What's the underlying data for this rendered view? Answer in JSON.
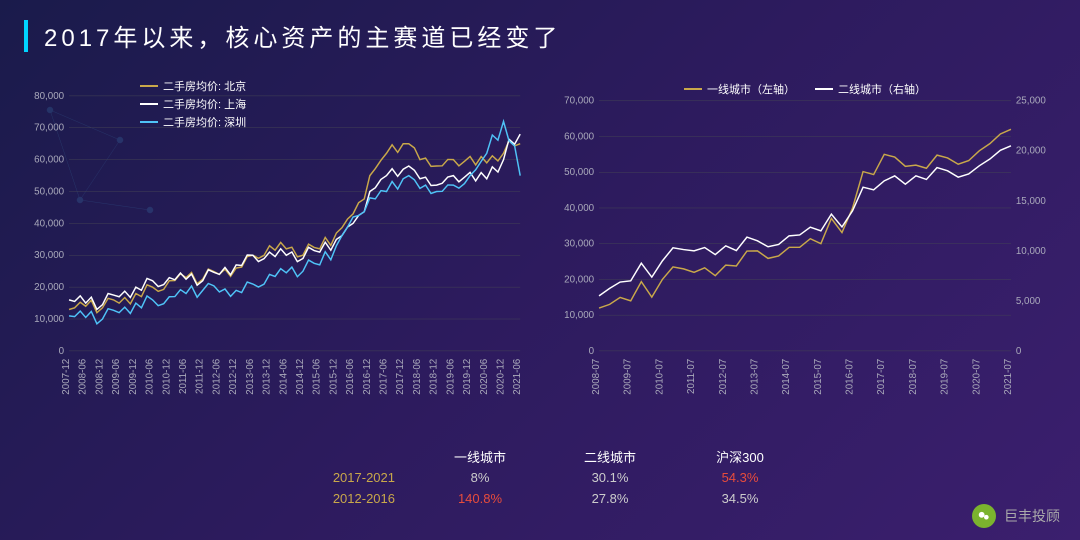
{
  "title": "2017年以来，核心资产的主赛道已经变了",
  "chart_left": {
    "legend": [
      {
        "label": "二手房均价: 北京",
        "color": "#c9a84a"
      },
      {
        "label": "二手房均价: 上海",
        "color": "#ffffff"
      },
      {
        "label": "二手房均价: 深圳",
        "color": "#4fc3f7"
      }
    ],
    "ylim": [
      0,
      80000
    ],
    "ytick_step": 10000,
    "x_labels": [
      "2007-12",
      "2008-06",
      "2008-12",
      "2009-06",
      "2009-12",
      "2010-06",
      "2010-12",
      "2011-06",
      "2011-12",
      "2012-06",
      "2012-12",
      "2013-06",
      "2013-12",
      "2014-06",
      "2014-12",
      "2015-06",
      "2015-12",
      "2016-06",
      "2016-12",
      "2017-06",
      "2017-12",
      "2018-06",
      "2018-12",
      "2019-06",
      "2019-12",
      "2020-06",
      "2020-12",
      "2021-06"
    ],
    "series": [
      {
        "color": "#c9a84a",
        "pts": [
          13000,
          14000,
          13500,
          15000,
          18000,
          20000,
          22000,
          23000,
          22500,
          24000,
          26000,
          30000,
          33000,
          32000,
          30000,
          32000,
          37000,
          43000,
          55000,
          62000,
          65000,
          60000,
          58000,
          60000,
          61000,
          59000,
          62000,
          65000
        ]
      },
      {
        "color": "#ffffff",
        "pts": [
          16000,
          15000,
          14500,
          17000,
          20000,
          22000,
          23000,
          22500,
          22000,
          24000,
          27000,
          30000,
          31000,
          30000,
          29000,
          31000,
          35000,
          40000,
          50000,
          55000,
          57000,
          54000,
          52000,
          55000,
          56000,
          54000,
          60000,
          68000
        ]
      },
      {
        "color": "#4fc3f7",
        "pts": [
          11000,
          10500,
          10000,
          12000,
          15000,
          16000,
          17000,
          18000,
          19000,
          18500,
          19000,
          21000,
          24000,
          24500,
          25000,
          27000,
          33000,
          42000,
          48000,
          50000,
          54000,
          51000,
          50000,
          52000,
          55000,
          62000,
          72000,
          55000
        ]
      }
    ]
  },
  "chart_right": {
    "legend": [
      {
        "label": "一线城市（左轴）",
        "color": "#c9a84a"
      },
      {
        "label": "二线城市（右轴）",
        "color": "#ffffff"
      }
    ],
    "ylim_left": [
      0,
      70000
    ],
    "ytick_left": 10000,
    "ylim_right": [
      0,
      25000
    ],
    "ytick_right": 5000,
    "x_labels": [
      "2008-07",
      "2009-07",
      "2010-07",
      "2011-07",
      "2012-07",
      "2013-07",
      "2014-07",
      "2015-07",
      "2016-07",
      "2017-07",
      "2018-07",
      "2019-07",
      "2020-07",
      "2021-07"
    ],
    "series": [
      {
        "axis": "left",
        "color": "#c9a84a",
        "pts": [
          12000,
          14000,
          20000,
          22000,
          24000,
          28000,
          29000,
          30000,
          40000,
          55000,
          52000,
          54000,
          56000,
          62000
        ]
      },
      {
        "axis": "right",
        "color": "#ffffff",
        "pts": [
          5500,
          7000,
          9000,
          10000,
          10500,
          11000,
          11500,
          12000,
          14000,
          17000,
          17500,
          18000,
          18500,
          20500
        ]
      }
    ]
  },
  "table": {
    "headers": [
      "",
      "一线城市",
      "二线城市",
      "沪深300"
    ],
    "rows": [
      {
        "period": "2017-2021",
        "cells": [
          {
            "v": "8%"
          },
          {
            "v": "30.1%"
          },
          {
            "v": "54.3%",
            "red": true
          }
        ]
      },
      {
        "period": "2012-2016",
        "cells": [
          {
            "v": "140.8%",
            "red": true
          },
          {
            "v": "27.8%"
          },
          {
            "v": "34.5%"
          }
        ]
      }
    ]
  },
  "watermark": "巨丰投顾",
  "colors": {
    "bg_start": "#1a1b4b",
    "bg_end": "#3b1f6e",
    "accent": "#00d4ff",
    "grid": "#445"
  }
}
